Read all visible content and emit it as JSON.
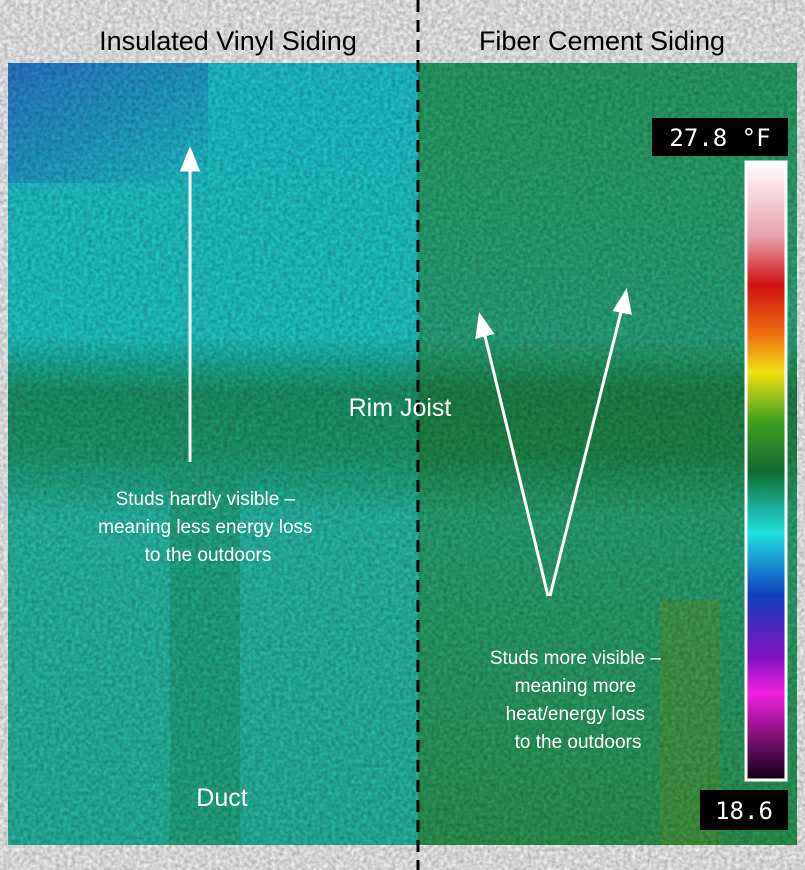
{
  "headings": {
    "left": "Insulated Vinyl Siding",
    "right": "Fiber Cement Siding"
  },
  "scale": {
    "max_label": "27.8 °F",
    "min_label": "18.6"
  },
  "annotations": {
    "rim_joist": "Rim Joist",
    "left_note": [
      "Studs hardly visible –",
      "meaning less energy loss",
      "to the outdoors"
    ],
    "duct": "Duct",
    "right_note": [
      "Studs more visible –",
      "meaning more",
      "heat/energy loss",
      "to the outdoors"
    ]
  }
}
